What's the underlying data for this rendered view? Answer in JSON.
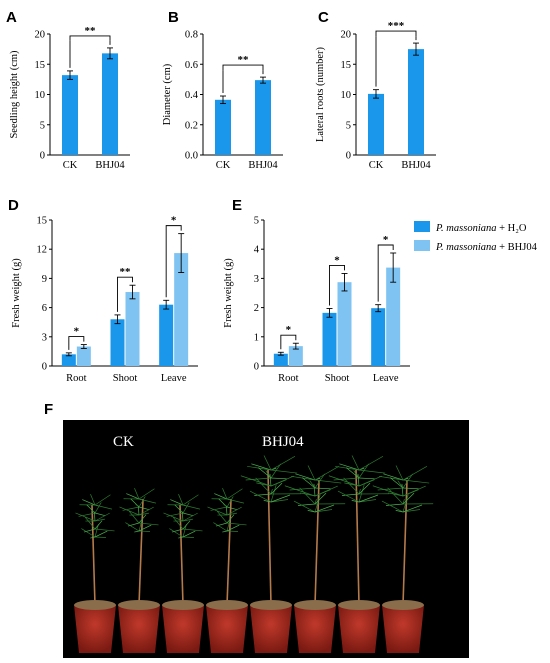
{
  "panel_labels": [
    "A",
    "B",
    "C",
    "D",
    "E",
    "F"
  ],
  "colors": {
    "ck": "#1a97ea",
    "bhj": "#7fc3f2",
    "axis": "#000000"
  },
  "legend": {
    "entries": [
      {
        "species": "P. massoniana",
        "treatment": " + H₂O",
        "color": "#1a97ea"
      },
      {
        "species": "P. massoniana",
        "treatment": " + BHJ04",
        "color": "#7fc3f2"
      }
    ]
  },
  "photo": {
    "label_ck": "CK",
    "label_bhj": "BHJ04",
    "pots": 8
  },
  "chart_data": [
    {
      "panel": "A",
      "type": "bar",
      "categories": [
        "CK",
        "BHJ04"
      ],
      "values": [
        13.2,
        16.8
      ],
      "errors": [
        0.7,
        0.9
      ],
      "ylabel": "Seedling height (cm)",
      "ylim": [
        0,
        20
      ],
      "yticks": [
        0,
        5,
        10,
        15,
        20
      ],
      "sig": [
        {
          "from": 0,
          "to": 1,
          "label": "**"
        }
      ]
    },
    {
      "panel": "B",
      "type": "bar",
      "categories": [
        "CK",
        "BHJ04"
      ],
      "values": [
        0.365,
        0.495
      ],
      "errors": [
        0.025,
        0.02
      ],
      "ylabel": "Diameter (cm)",
      "ylim": [
        0,
        0.8
      ],
      "yticks": [
        0.0,
        0.2,
        0.4,
        0.6,
        0.8
      ],
      "tick_decimals": 1,
      "sig": [
        {
          "from": 0,
          "to": 1,
          "label": "**"
        }
      ]
    },
    {
      "panel": "C",
      "type": "bar",
      "categories": [
        "CK",
        "BHJ04"
      ],
      "values": [
        10.1,
        17.5
      ],
      "errors": [
        0.7,
        1.0
      ],
      "ylabel": "Lateral roots (number)",
      "ylim": [
        0,
        20
      ],
      "yticks": [
        0,
        5,
        10,
        15,
        20
      ],
      "sig": [
        {
          "from": 0,
          "to": 1,
          "label": "***"
        }
      ]
    },
    {
      "panel": "D",
      "type": "bar",
      "categories": [
        "Root",
        "Shoot",
        "Leave"
      ],
      "series": [
        {
          "name": "P. massoniana + H₂O",
          "values": [
            1.2,
            4.8,
            6.3
          ],
          "errors": [
            0.15,
            0.45,
            0.45
          ]
        },
        {
          "name": "P. massoniana + BHJ04",
          "values": [
            2.0,
            7.6,
            11.6
          ],
          "errors": [
            0.2,
            0.7,
            2.0
          ]
        }
      ],
      "ylabel": "Fresh weight (g)",
      "ylim": [
        0,
        15
      ],
      "yticks": [
        0,
        3,
        6,
        9,
        12,
        15
      ],
      "sig": [
        "*",
        "**",
        "*"
      ]
    },
    {
      "panel": "E",
      "type": "bar",
      "categories": [
        "Root",
        "Shoot",
        "Leave"
      ],
      "series": [
        {
          "name": "P. massoniana + H₂O",
          "values": [
            0.42,
            1.82,
            1.98
          ],
          "errors": [
            0.05,
            0.15,
            0.12
          ]
        },
        {
          "name": "P. massoniana + BHJ04",
          "values": [
            0.68,
            2.87,
            3.37
          ],
          "errors": [
            0.1,
            0.3,
            0.5
          ]
        }
      ],
      "ylabel": "Fresh weight (g)",
      "ylim": [
        0,
        5
      ],
      "yticks": [
        0,
        1,
        2,
        3,
        4,
        5
      ],
      "sig": [
        "*",
        "*",
        "*"
      ]
    }
  ]
}
